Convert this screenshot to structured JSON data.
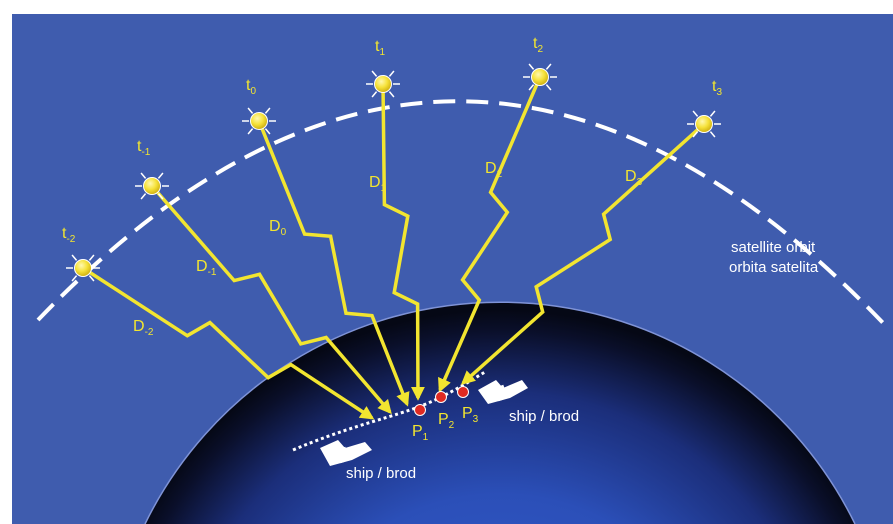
{
  "orbit_label": {
    "line1": "satellite orbit",
    "line2": "orbita satelita"
  },
  "ship_label": "ship / brod",
  "satellites": [
    {
      "name": "t",
      "sub": "-2"
    },
    {
      "name": "t",
      "sub": "-1"
    },
    {
      "name": "t",
      "sub": "0"
    },
    {
      "name": "t",
      "sub": "1"
    },
    {
      "name": "t",
      "sub": "2"
    },
    {
      "name": "t",
      "sub": "3"
    }
  ],
  "distances": [
    {
      "name": "D",
      "sub": "-2"
    },
    {
      "name": "D",
      "sub": "-1"
    },
    {
      "name": "D",
      "sub": "0"
    },
    {
      "name": "D",
      "sub": "1"
    },
    {
      "name": "D",
      "sub": "2"
    },
    {
      "name": "D",
      "sub": "3"
    }
  ],
  "positions": [
    {
      "name": "P",
      "sub": "1"
    },
    {
      "name": "P",
      "sub": "2"
    },
    {
      "name": "P",
      "sub": "3"
    }
  ],
  "colors": {
    "background": "#3f5cae",
    "beam": "#f2e530",
    "orbit": "#ffffff",
    "earth_center": "#2f56c4",
    "earth_edge": "#0a0f2a",
    "position_marker": "#e02a22"
  }
}
